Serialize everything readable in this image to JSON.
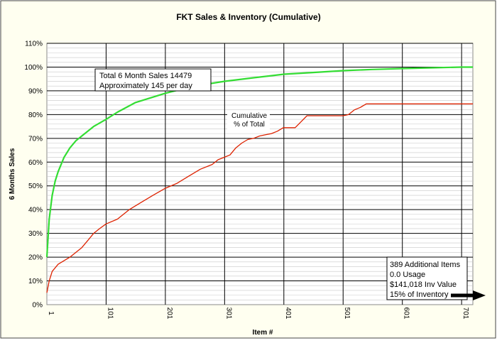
{
  "chart_data": {
    "type": "line",
    "title": "FKT Sales & Inventory (Cumulative)",
    "xlabel": "Item #",
    "ylabel": "6 Months Sales",
    "ylim": [
      0,
      1.1
    ],
    "xlim": [
      1,
      720
    ],
    "y_ticks": [
      "0%",
      "10%",
      "20%",
      "30%",
      "40%",
      "50%",
      "60%",
      "70%",
      "80%",
      "90%",
      "100%",
      "110%"
    ],
    "x_ticks": [
      "1",
      "101",
      "201",
      "301",
      "401",
      "501",
      "601",
      "701"
    ],
    "grid": "on",
    "series": [
      {
        "color": "#33dd33",
        "x": [
          1,
          5,
          10,
          15,
          20,
          30,
          40,
          50,
          60,
          80,
          101,
          120,
          150,
          201,
          250,
          301,
          350,
          401,
          450,
          501,
          550,
          601,
          650,
          701,
          720
        ],
        "values": [
          0.2,
          0.36,
          0.46,
          0.52,
          0.56,
          0.62,
          0.66,
          0.69,
          0.71,
          0.75,
          0.78,
          0.81,
          0.85,
          0.89,
          0.92,
          0.94,
          0.955,
          0.97,
          0.977,
          0.985,
          0.99,
          0.994,
          0.997,
          1.0,
          1.0
        ]
      },
      {
        "color": "#dd2200",
        "x": [
          1,
          5,
          10,
          20,
          30,
          40,
          50,
          60,
          70,
          80,
          90,
          101,
          120,
          140,
          160,
          180,
          201,
          220,
          240,
          260,
          280,
          290,
          300,
          310,
          320,
          330,
          340,
          350,
          360,
          370,
          380,
          390,
          400,
          420,
          430,
          440,
          450,
          460,
          470,
          480,
          490,
          501,
          510,
          520,
          530,
          540,
          560,
          600,
          650,
          701,
          720
        ],
        "values": [
          0.05,
          0.1,
          0.14,
          0.17,
          0.185,
          0.2,
          0.22,
          0.24,
          0.27,
          0.3,
          0.32,
          0.34,
          0.36,
          0.4,
          0.43,
          0.46,
          0.49,
          0.51,
          0.54,
          0.57,
          0.59,
          0.61,
          0.62,
          0.63,
          0.66,
          0.68,
          0.695,
          0.7,
          0.71,
          0.715,
          0.72,
          0.73,
          0.745,
          0.745,
          0.77,
          0.795,
          0.795,
          0.795,
          0.795,
          0.795,
          0.795,
          0.795,
          0.8,
          0.82,
          0.83,
          0.845,
          0.845,
          0.845,
          0.845,
          0.845,
          0.845
        ]
      }
    ],
    "annotations": {
      "total_box": [
        "Total 6 Month Sales 14479",
        "Approximately 145 per day"
      ],
      "cumulative_label": [
        "Cumulative",
        "% of Total"
      ],
      "additional_box": [
        "389 Additional Items",
        "0.0 Usage",
        "$141,018 Inv Value",
        "15% of Inventory"
      ]
    }
  }
}
